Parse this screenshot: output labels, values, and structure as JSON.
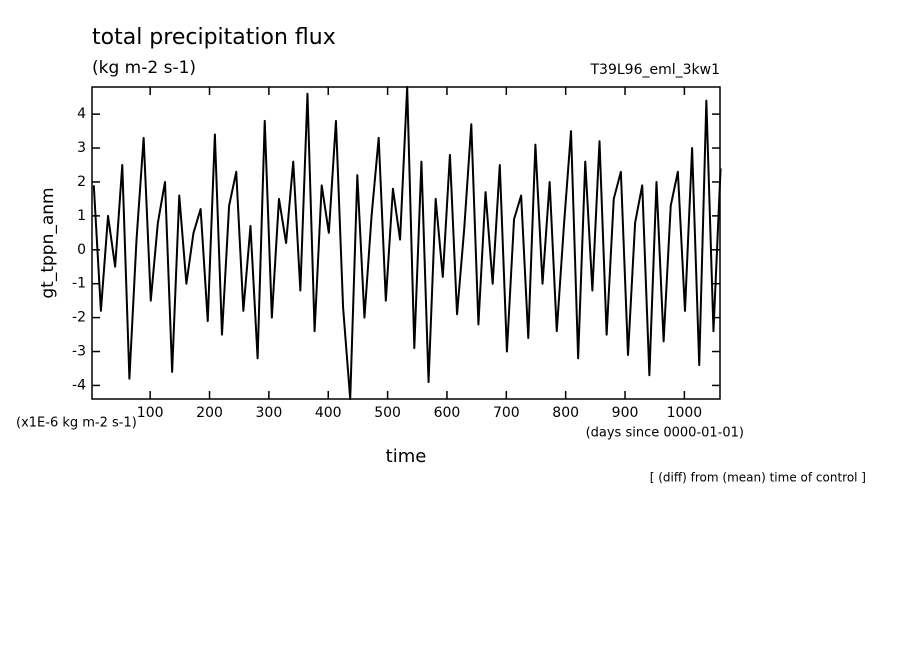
{
  "chart_data": {
    "type": "line",
    "title": "total precipitation flux",
    "subtitle": "(kg m-2 s-1)",
    "run_label": "T39L96_eml_3kw1",
    "ylabel": "gt_tppn_anm",
    "yunit": "(x1E-6 kg m-2 s-1)",
    "xunit": "(days since 0000-01-01)",
    "xlabel": "time",
    "note": "[ (diff) from (mean) time of control ]",
    "xlim": [
      2,
      1060
    ],
    "ylim": [
      -4.4,
      4.8
    ],
    "xticks": [
      100,
      200,
      300,
      400,
      500,
      600,
      700,
      800,
      900,
      1000
    ],
    "yticks": [
      -4,
      -3,
      -2,
      -1,
      0,
      1,
      2,
      3,
      4
    ],
    "series": [
      {
        "color": "#000000",
        "x": [
          5,
          17,
          29,
          41,
          53,
          65,
          77,
          89,
          101,
          113,
          125,
          137,
          149,
          161,
          173,
          185,
          197,
          209,
          221,
          233,
          245,
          257,
          269,
          281,
          293,
          305,
          317,
          329,
          341,
          353,
          365,
          377,
          389,
          401,
          413,
          425,
          437,
          449,
          461,
          473,
          485,
          497,
          509,
          521,
          533,
          545,
          557,
          569,
          581,
          593,
          605,
          617,
          629,
          641,
          653,
          665,
          677,
          689,
          701,
          713,
          725,
          737,
          749,
          761,
          773,
          785,
          797,
          809,
          821,
          833,
          845,
          857,
          869,
          881,
          893,
          905,
          917,
          929,
          941,
          953,
          965,
          977,
          989,
          1001,
          1013,
          1025,
          1037,
          1049,
          1061
        ],
        "values": [
          1.9,
          -1.8,
          1.0,
          -0.5,
          2.5,
          -3.8,
          0.3,
          3.3,
          -1.5,
          0.8,
          2.0,
          -3.6,
          1.6,
          -1.0,
          0.5,
          1.2,
          -2.1,
          3.4,
          -2.5,
          1.3,
          2.3,
          -1.8,
          0.7,
          -3.2,
          3.8,
          -2.0,
          1.5,
          0.2,
          2.6,
          -1.2,
          4.6,
          -2.4,
          1.9,
          0.5,
          3.8,
          -1.7,
          -4.4,
          2.2,
          -2.0,
          1.0,
          3.3,
          -1.5,
          1.8,
          0.3,
          4.8,
          -2.9,
          2.6,
          -3.9,
          1.5,
          -0.8,
          2.8,
          -1.9,
          0.6,
          3.7,
          -2.2,
          1.7,
          -1.0,
          2.5,
          -3.0,
          0.9,
          1.6,
          -2.6,
          3.1,
          -1.0,
          2.0,
          -2.4,
          0.7,
          3.5,
          -3.2,
          2.6,
          -1.2,
          3.2,
          -2.5,
          1.5,
          2.3,
          -3.1,
          0.8,
          1.9,
          -3.7,
          2.0,
          -2.7,
          1.3,
          2.3,
          -1.8,
          3.0,
          -3.4,
          4.4,
          -2.4,
          2.4
        ]
      }
    ]
  }
}
